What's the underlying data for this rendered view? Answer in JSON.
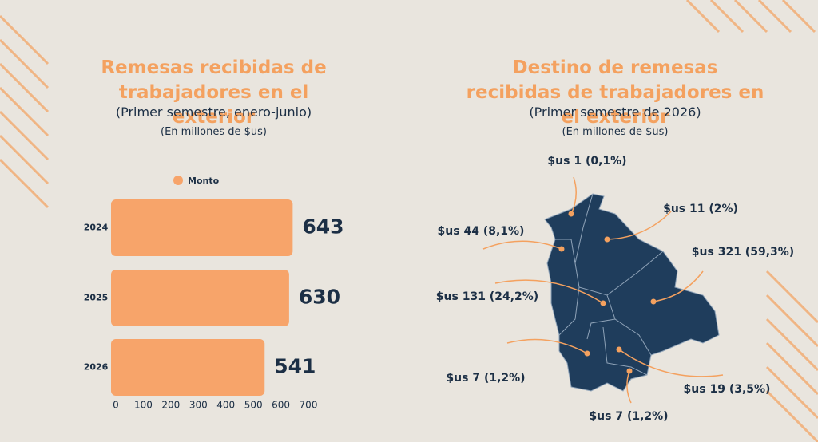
{
  "chart_data": [
    {
      "type": "hbar",
      "title": "Remesas recibidas de trabajadores en el exterior",
      "subtitle": "(Primer semestre, enero-junio)",
      "unit_note": "(En millones de $us)",
      "categories": [
        "2024",
        "2025",
        "2026"
      ],
      "series": [
        {
          "name": "Monto",
          "color": "#f7a46a",
          "values": [
            643,
            630,
            541
          ]
        }
      ],
      "xlim": [
        0,
        700
      ],
      "xticks": [
        0,
        100,
        200,
        300,
        400,
        500,
        600,
        700
      ],
      "legend": "top"
    },
    {
      "type": "map",
      "title": "Destino de remesas recibidas de trabajadores en el exterior",
      "subtitle": "(Primer semestre de 2026)",
      "unit_note": "(En millones de $us)",
      "color": "#1f3d5c",
      "labels": [
        "$us 1 (0,1%)",
        "$us 11 (2%)",
        "$us 44 (8,1%)",
        "$us 321 (59,3%)",
        "$us 131 (24,2%)",
        "$us 7 (1,2%)",
        "$us 7 (1,2%)",
        "$us 19 (3,5%)"
      ]
    }
  ]
}
